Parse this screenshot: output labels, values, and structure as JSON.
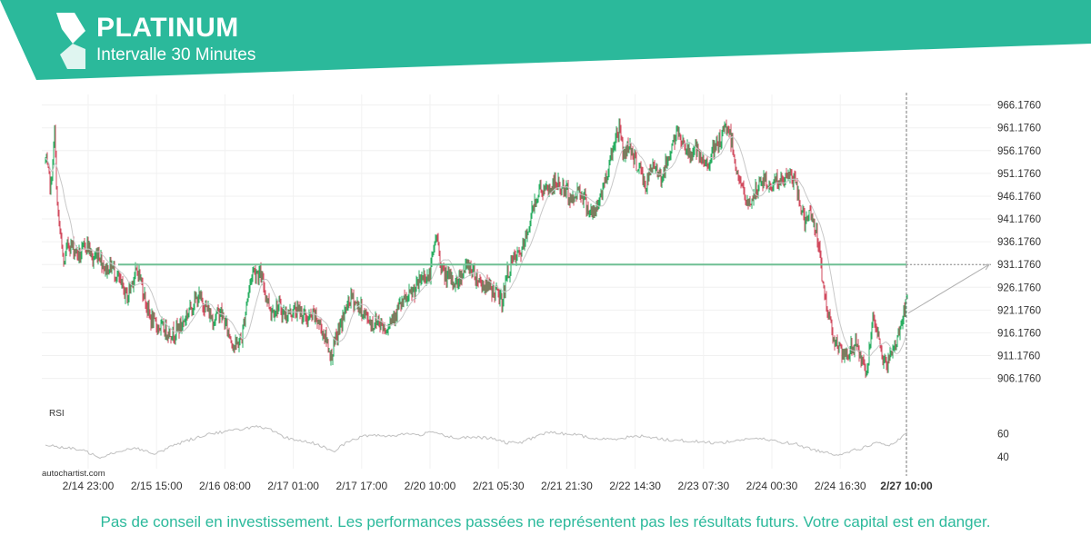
{
  "header": {
    "title": "PLATINUM",
    "subtitle": "Intervalle 30 Minutes",
    "brand_color": "#2bb99b"
  },
  "disclaimer": "Pas de conseil en investissement. Les performances passées ne représentent pas les résultats futurs. Votre capital est en danger.",
  "credit": "autochartist.com",
  "chart_data": {
    "type": "candlestick",
    "x_tick_labels": [
      "2/14 23:00",
      "2/15 15:00",
      "2/16 08:00",
      "2/17 01:00",
      "2/17 17:00",
      "2/20 10:00",
      "2/21 05:30",
      "2/21 21:30",
      "2/22 14:30",
      "2/23 07:30",
      "2/24 00:30",
      "2/24 16:30",
      "2/27 10:00"
    ],
    "y_tick_labels": [
      "966.1760",
      "961.1760",
      "956.1760",
      "951.1760",
      "946.1760",
      "941.1760",
      "936.1760",
      "931.1760",
      "926.1760",
      "921.1760",
      "916.1760",
      "911.1760",
      "906.1760"
    ],
    "ylim": [
      903.5,
      968.5
    ],
    "resistance_level": 931.176,
    "current_time_label": "2/27 10:00",
    "projection": {
      "from": 920.5,
      "to": 931.176
    },
    "price_path": [
      [
        0,
        954
      ],
      [
        6,
        948
      ],
      [
        10,
        960
      ],
      [
        13,
        944
      ],
      [
        16,
        938
      ],
      [
        20,
        931
      ],
      [
        25,
        936
      ],
      [
        30,
        935
      ],
      [
        38,
        933
      ],
      [
        46,
        936
      ],
      [
        52,
        932
      ],
      [
        58,
        934
      ],
      [
        66,
        930
      ],
      [
        72,
        931
      ],
      [
        78,
        929
      ],
      [
        84,
        926
      ],
      [
        90,
        924
      ],
      [
        96,
        928
      ],
      [
        102,
        930
      ],
      [
        108,
        925
      ],
      [
        114,
        920
      ],
      [
        120,
        918
      ],
      [
        130,
        917
      ],
      [
        140,
        916
      ],
      [
        150,
        918
      ],
      [
        160,
        922
      ],
      [
        168,
        924
      ],
      [
        176,
        922
      ],
      [
        184,
        919
      ],
      [
        192,
        921
      ],
      [
        200,
        917
      ],
      [
        208,
        913
      ],
      [
        216,
        915
      ],
      [
        222,
        924
      ],
      [
        228,
        930
      ],
      [
        236,
        929
      ],
      [
        242,
        925
      ],
      [
        248,
        921
      ],
      [
        256,
        922
      ],
      [
        264,
        920
      ],
      [
        272,
        921
      ],
      [
        280,
        921
      ],
      [
        288,
        919
      ],
      [
        296,
        920
      ],
      [
        304,
        917
      ],
      [
        310,
        914
      ],
      [
        314,
        911
      ],
      [
        320,
        915
      ],
      [
        328,
        920
      ],
      [
        336,
        924
      ],
      [
        344,
        922
      ],
      [
        352,
        920
      ],
      [
        360,
        918
      ],
      [
        366,
        919
      ],
      [
        374,
        917
      ],
      [
        382,
        920
      ],
      [
        390,
        922
      ],
      [
        400,
        924
      ],
      [
        408,
        926
      ],
      [
        416,
        929
      ],
      [
        422,
        928
      ],
      [
        430,
        938
      ],
      [
        434,
        932
      ],
      [
        438,
        929
      ],
      [
        444,
        928
      ],
      [
        452,
        927
      ],
      [
        460,
        930
      ],
      [
        466,
        931
      ],
      [
        472,
        929
      ],
      [
        480,
        927
      ],
      [
        488,
        926
      ],
      [
        496,
        925
      ],
      [
        502,
        923
      ],
      [
        508,
        929
      ],
      [
        514,
        932
      ],
      [
        520,
        933
      ],
      [
        526,
        935
      ],
      [
        532,
        940
      ],
      [
        538,
        945
      ],
      [
        544,
        948
      ],
      [
        550,
        947
      ],
      [
        556,
        948
      ],
      [
        562,
        949
      ],
      [
        568,
        948
      ],
      [
        574,
        947
      ],
      [
        580,
        945
      ],
      [
        586,
        948
      ],
      [
        592,
        946
      ],
      [
        598,
        943
      ],
      [
        604,
        942
      ],
      [
        610,
        946
      ],
      [
        616,
        950
      ],
      [
        622,
        955
      ],
      [
        628,
        960
      ],
      [
        632,
        961
      ],
      [
        636,
        955
      ],
      [
        642,
        958
      ],
      [
        648,
        954
      ],
      [
        654,
        952
      ],
      [
        660,
        948
      ],
      [
        666,
        952
      ],
      [
        672,
        953
      ],
      [
        678,
        950
      ],
      [
        684,
        954
      ],
      [
        690,
        958
      ],
      [
        696,
        960
      ],
      [
        702,
        958
      ],
      [
        708,
        955
      ],
      [
        714,
        957
      ],
      [
        720,
        954
      ],
      [
        726,
        953
      ],
      [
        732,
        955
      ],
      [
        738,
        957
      ],
      [
        744,
        959
      ],
      [
        750,
        962
      ],
      [
        756,
        957
      ],
      [
        760,
        952
      ],
      [
        766,
        948
      ],
      [
        772,
        944
      ],
      [
        778,
        946
      ],
      [
        784,
        948
      ],
      [
        790,
        950
      ],
      [
        796,
        948
      ],
      [
        802,
        950
      ],
      [
        808,
        949
      ],
      [
        814,
        950
      ],
      [
        820,
        951
      ],
      [
        826,
        948
      ],
      [
        832,
        943
      ],
      [
        836,
        940
      ],
      [
        842,
        943
      ],
      [
        848,
        938
      ],
      [
        852,
        932
      ],
      [
        856,
        926
      ],
      [
        860,
        921
      ],
      [
        864,
        918
      ],
      [
        868,
        915
      ],
      [
        874,
        912
      ],
      [
        880,
        910
      ],
      [
        886,
        913
      ],
      [
        892,
        914
      ],
      [
        898,
        910
      ],
      [
        902,
        907
      ],
      [
        906,
        912
      ],
      [
        910,
        918
      ],
      [
        914,
        917
      ],
      [
        918,
        913
      ],
      [
        924,
        909
      ],
      [
        930,
        911
      ],
      [
        936,
        914
      ],
      [
        940,
        918
      ],
      [
        944,
        920
      ],
      [
        948,
        924
      ]
    ],
    "rsi": {
      "label": "RSI",
      "y_tick_labels": [
        "60",
        "40"
      ],
      "ylim": [
        30,
        72
      ],
      "path": [
        [
          0,
          50
        ],
        [
          20,
          48
        ],
        [
          40,
          46
        ],
        [
          60,
          40
        ],
        [
          80,
          45
        ],
        [
          100,
          48
        ],
        [
          120,
          42
        ],
        [
          140,
          50
        ],
        [
          160,
          55
        ],
        [
          180,
          60
        ],
        [
          200,
          62
        ],
        [
          215,
          64
        ],
        [
          222,
          65
        ],
        [
          232,
          66
        ],
        [
          248,
          63
        ],
        [
          262,
          57
        ],
        [
          280,
          54
        ],
        [
          300,
          51
        ],
        [
          316,
          44
        ],
        [
          330,
          52
        ],
        [
          346,
          57
        ],
        [
          360,
          59
        ],
        [
          380,
          58
        ],
        [
          396,
          60
        ],
        [
          412,
          59
        ],
        [
          430,
          62
        ],
        [
          440,
          58
        ],
        [
          456,
          56
        ],
        [
          470,
          57
        ],
        [
          490,
          56
        ],
        [
          508,
          52
        ],
        [
          526,
          53
        ],
        [
          540,
          58
        ],
        [
          552,
          61
        ],
        [
          570,
          60
        ],
        [
          586,
          59
        ],
        [
          600,
          56
        ],
        [
          620,
          55
        ],
        [
          640,
          57
        ],
        [
          660,
          58
        ],
        [
          680,
          55
        ],
        [
          700,
          54
        ],
        [
          720,
          53
        ],
        [
          740,
          52
        ],
        [
          760,
          54
        ],
        [
          776,
          56
        ],
        [
          792,
          55
        ],
        [
          808,
          53
        ],
        [
          826,
          51
        ],
        [
          836,
          48
        ],
        [
          852,
          45
        ],
        [
          870,
          42
        ],
        [
          880,
          44
        ],
        [
          896,
          47
        ],
        [
          912,
          52
        ],
        [
          930,
          50
        ],
        [
          944,
          58
        ],
        [
          948,
          60
        ]
      ]
    }
  }
}
